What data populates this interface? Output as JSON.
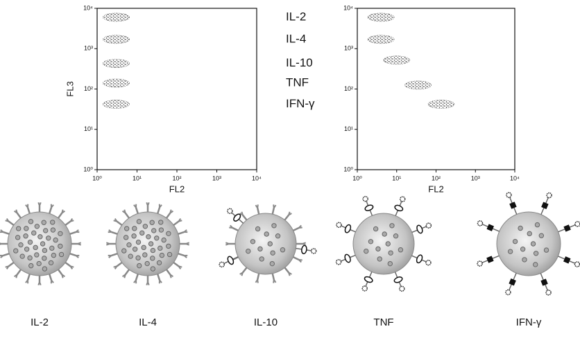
{
  "chart_data": [
    {
      "type": "scatter",
      "xlabel": "FL2",
      "ylabel": "FL3",
      "log": true,
      "color": "#333333",
      "x": [
        3,
        3,
        3,
        3,
        3
      ],
      "values": [
        6000,
        1700,
        430,
        140,
        42
      ],
      "annotations": [
        "IL-2",
        "IL-4",
        "IL-10",
        "TNF",
        "IFN-γ"
      ],
      "xlim": [
        1,
        10000
      ],
      "ylim": [
        1,
        10000
      ],
      "xticks": [
        {
          "value": 1,
          "label": "10⁰"
        },
        {
          "value": 10,
          "label": "10¹"
        },
        {
          "value": 100,
          "label": "10²"
        },
        {
          "value": 1000,
          "label": "10³"
        },
        {
          "value": 10000,
          "label": "10⁴"
        }
      ],
      "yticks": [
        {
          "value": 1,
          "label": "10⁰"
        },
        {
          "value": 10,
          "label": "10¹"
        },
        {
          "value": 100,
          "label": "10²"
        },
        {
          "value": 1000,
          "label": "10³"
        },
        {
          "value": 10000,
          "label": "10⁴"
        }
      ]
    },
    {
      "type": "scatter",
      "xlabel": "FL2",
      "log": true,
      "color": "#333333",
      "x": [
        4,
        4,
        10,
        35,
        135
      ],
      "values": [
        6000,
        1700,
        520,
        125,
        42
      ],
      "xlim": [
        1,
        10000
      ],
      "ylim": [
        1,
        10000
      ],
      "xticks": [
        {
          "value": 1,
          "label": "10⁰"
        },
        {
          "value": 10,
          "label": "10¹"
        },
        {
          "value": 100,
          "label": "10²"
        },
        {
          "value": 1000,
          "label": "10³"
        },
        {
          "value": 10000,
          "label": "10⁴"
        }
      ],
      "yticks": [
        {
          "value": 1,
          "label": "10⁰"
        },
        {
          "value": 10,
          "label": "10¹"
        },
        {
          "value": 100,
          "label": "10²"
        },
        {
          "value": 1000,
          "label": "10³"
        },
        {
          "value": 10000,
          "label": "10⁴"
        }
      ]
    }
  ],
  "beads": {
    "labels": [
      "IL-2",
      "IL-4",
      "IL-10",
      "TNF",
      "IFN-γ"
    ]
  }
}
